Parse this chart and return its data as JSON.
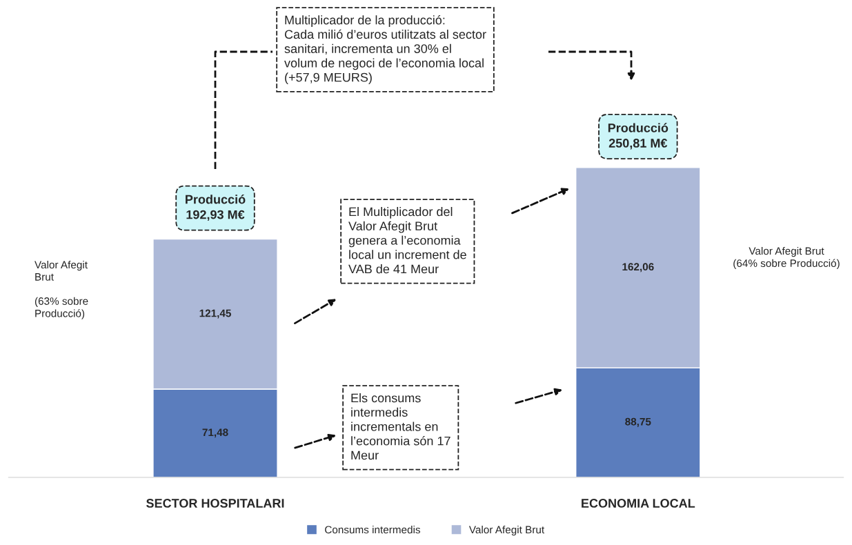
{
  "chart_data": {
    "type": "bar",
    "stacked": true,
    "categories": [
      "SECTOR HOSPITALARI",
      "ECONOMIA LOCAL"
    ],
    "series": [
      {
        "name": "Consums intermedis",
        "color": "#5b7dbd",
        "values": [
          71.48,
          88.75
        ],
        "value_labels": [
          "71,48",
          "88,75"
        ]
      },
      {
        "name": "Valor Afegit Brut",
        "color": "#adb9d8",
        "values": [
          121.45,
          162.06
        ],
        "value_labels": [
          "121,45",
          "162,06"
        ]
      }
    ],
    "totals": [
      "Producció\n192,93 M€",
      "Producció\n250,81 M€"
    ],
    "annotations": [
      "Multiplicador de la producció:\nCada milió d’euros utilitzats al sector\nsanitari, incrementa un 30% el\nvolum de negoci de l’economia local\n(+57,9 MEURS)",
      "El Multiplicador del\nValor Afegit Brut\ngenera a l’economia\nlocal un increment de\nVAB de 41 Meur",
      "Els consums\nintermedis\nincrementals en\nl’economia són 17\nMeur",
      "Valor Afegit\nBrut\n\n(63% sobre\nProducció)",
      "Valor Afegit Brut\n(64% sobre Producció)"
    ],
    "legend": "bottom",
    "grid": false
  }
}
